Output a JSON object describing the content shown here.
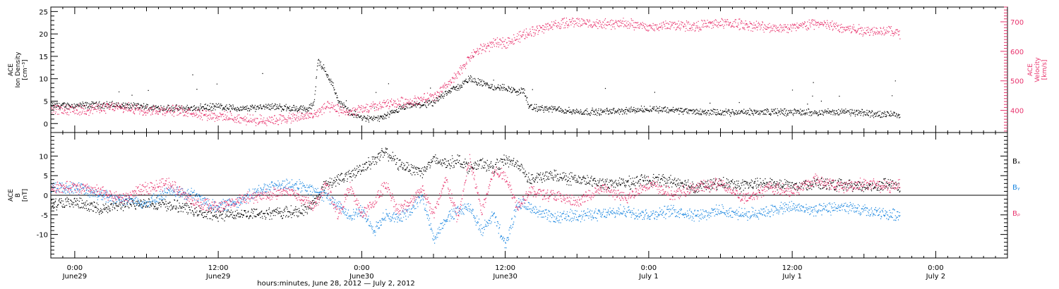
{
  "chart_data": [
    {
      "type": "scatter",
      "panel": "top",
      "left_axis": {
        "label_lines": [
          "ACE",
          "Ion Density",
          "[cm⁻³]"
        ],
        "ylim": [
          -2,
          26
        ],
        "ticks": [
          0,
          5,
          10,
          15,
          20,
          25
        ],
        "color": "#000000"
      },
      "right_axis": {
        "label_lines": [
          "ACE",
          "Velocity",
          "[km/s]"
        ],
        "ylim": [
          325,
          750
        ],
        "ticks": [
          400,
          500,
          600,
          700
        ],
        "color": "#e8336d"
      },
      "series": [
        {
          "axis": "left",
          "color": "#000000",
          "points": [
            [
              0,
              4
            ],
            [
              3,
              4.2
            ],
            [
              6,
              3.6
            ],
            [
              9,
              3.3
            ],
            [
              12,
              3.8
            ],
            [
              14,
              3.2
            ],
            [
              16,
              3.9
            ],
            [
              18,
              3.4
            ],
            [
              19.5,
              3.1
            ],
            [
              20,
              5
            ],
            [
              20.3,
              14
            ],
            [
              20.8,
              12
            ],
            [
              21.5,
              9
            ],
            [
              22,
              5
            ],
            [
              23,
              2.5
            ],
            [
              24,
              1.2
            ],
            [
              25,
              1
            ],
            [
              26,
              1.5
            ],
            [
              27,
              3
            ],
            [
              28,
              4
            ],
            [
              29,
              4.2
            ],
            [
              30,
              4.5
            ],
            [
              31,
              7
            ],
            [
              32,
              8
            ],
            [
              33,
              10
            ],
            [
              34,
              9
            ],
            [
              35,
              8
            ],
            [
              36,
              8
            ],
            [
              37,
              7
            ],
            [
              37.5,
              7.5
            ],
            [
              38,
              3.5
            ],
            [
              40,
              3.2
            ],
            [
              42,
              2.6
            ],
            [
              44,
              2.6
            ],
            [
              46,
              2.8
            ],
            [
              48,
              3.3
            ],
            [
              50,
              3
            ],
            [
              52,
              2.6
            ],
            [
              54,
              2.4
            ],
            [
              56,
              2.5
            ],
            [
              58,
              2.6
            ],
            [
              60,
              2.5
            ],
            [
              62,
              2.5
            ],
            [
              64,
              2.6
            ],
            [
              66,
              2.3
            ],
            [
              68,
              2
            ],
            [
              69,
              2.1
            ]
          ]
        },
        {
          "axis": "right",
          "color": "#e8336d",
          "points": [
            [
              0,
              400
            ],
            [
              3,
              410
            ],
            [
              6,
              402
            ],
            [
              9,
              398
            ],
            [
              12,
              380
            ],
            [
              15,
              365
            ],
            [
              18,
              372
            ],
            [
              20,
              385
            ],
            [
              21,
              412
            ],
            [
              23,
              392
            ],
            [
              24,
              402
            ],
            [
              26,
              420
            ],
            [
              28,
              430
            ],
            [
              30,
              445
            ],
            [
              31,
              480
            ],
            [
              32,
              520
            ],
            [
              33,
              580
            ],
            [
              34,
              610
            ],
            [
              35,
              625
            ],
            [
              36,
              630
            ],
            [
              37,
              645
            ],
            [
              38,
              665
            ],
            [
              40,
              690
            ],
            [
              42,
              700
            ],
            [
              44,
              690
            ],
            [
              46,
              695
            ],
            [
              48,
              680
            ],
            [
              50,
              690
            ],
            [
              52,
              685
            ],
            [
              54,
              695
            ],
            [
              56,
              690
            ],
            [
              58,
              680
            ],
            [
              60,
              680
            ],
            [
              62,
              695
            ],
            [
              64,
              680
            ],
            [
              66,
              670
            ],
            [
              68,
              670
            ],
            [
              69,
              660
            ]
          ]
        }
      ]
    },
    {
      "type": "scatter",
      "panel": "bottom",
      "left_axis": {
        "label_lines": [
          "ACE",
          "B",
          "[nT]"
        ],
        "ylim": [
          -16,
          16
        ],
        "ticks": [
          -10,
          -5,
          0,
          5,
          10
        ]
      },
      "legend": [
        "Bₓ",
        "Bᵧ",
        "Bᵨ"
      ],
      "series": [
        {
          "name": "Bₓ",
          "color": "#000000",
          "points": [
            [
              0,
              -2
            ],
            [
              2,
              -3.5
            ],
            [
              4,
              -2.5
            ],
            [
              6,
              -2
            ],
            [
              9,
              -3
            ],
            [
              11,
              -5
            ],
            [
              14,
              -4.8
            ],
            [
              17,
              -4.5
            ],
            [
              19,
              -4
            ],
            [
              20,
              -2
            ],
            [
              21,
              3
            ],
            [
              22,
              4
            ],
            [
              23,
              5
            ],
            [
              24,
              7
            ],
            [
              25,
              9
            ],
            [
              26,
              11
            ],
            [
              27,
              8
            ],
            [
              28,
              7
            ],
            [
              29,
              6
            ],
            [
              30,
              9
            ],
            [
              31,
              8
            ],
            [
              32,
              9
            ],
            [
              33,
              7
            ],
            [
              34,
              8
            ],
            [
              35,
              7
            ],
            [
              36,
              9
            ],
            [
              37,
              8
            ],
            [
              38,
              4
            ],
            [
              40,
              5
            ],
            [
              42,
              4
            ],
            [
              44,
              3
            ],
            [
              46,
              3
            ],
            [
              48,
              4
            ],
            [
              50,
              3.5
            ],
            [
              52,
              2
            ],
            [
              54,
              3
            ],
            [
              56,
              2.5
            ],
            [
              58,
              3
            ],
            [
              60,
              2.5
            ],
            [
              62,
              3
            ],
            [
              64,
              2.5
            ],
            [
              66,
              2
            ],
            [
              68,
              3
            ],
            [
              69,
              2
            ]
          ]
        },
        {
          "name": "Bᵧ",
          "color": "#1a86e0",
          "points": [
            [
              0,
              2
            ],
            [
              2,
              0
            ],
            [
              4,
              -1
            ],
            [
              6,
              -2
            ],
            [
              8,
              1
            ],
            [
              10,
              0
            ],
            [
              11,
              -2
            ],
            [
              12,
              -3
            ],
            [
              14,
              -1
            ],
            [
              16,
              2
            ],
            [
              18,
              3
            ],
            [
              20,
              1
            ],
            [
              21,
              0
            ],
            [
              22,
              -3
            ],
            [
              23,
              -5
            ],
            [
              24,
              -4
            ],
            [
              25,
              -9
            ],
            [
              26,
              -5
            ],
            [
              27,
              -6
            ],
            [
              28,
              -4
            ],
            [
              29,
              0
            ],
            [
              30,
              -11
            ],
            [
              31,
              -6
            ],
            [
              32,
              -4
            ],
            [
              33,
              -3
            ],
            [
              34,
              -9
            ],
            [
              35,
              -5
            ],
            [
              36,
              -13
            ],
            [
              37,
              -2
            ],
            [
              38,
              -3
            ],
            [
              40,
              -6
            ],
            [
              42,
              -5
            ],
            [
              44,
              -5
            ],
            [
              46,
              -4
            ],
            [
              48,
              -5
            ],
            [
              50,
              -4
            ],
            [
              52,
              -5
            ],
            [
              54,
              -4
            ],
            [
              56,
              -5
            ],
            [
              58,
              -4
            ],
            [
              60,
              -3
            ],
            [
              62,
              -4
            ],
            [
              64,
              -3
            ],
            [
              66,
              -4
            ],
            [
              68,
              -5
            ],
            [
              69,
              -5
            ]
          ]
        },
        {
          "name": "Bᵨ",
          "color": "#e8336d",
          "points": [
            [
              0,
              2
            ],
            [
              2,
              1
            ],
            [
              4,
              -1
            ],
            [
              6,
              2
            ],
            [
              8,
              3
            ],
            [
              10,
              -2
            ],
            [
              12,
              -3
            ],
            [
              14,
              -1
            ],
            [
              16,
              0
            ],
            [
              18,
              1
            ],
            [
              20,
              -3
            ],
            [
              21,
              3
            ],
            [
              22,
              -5
            ],
            [
              23,
              2
            ],
            [
              24,
              -5
            ],
            [
              25,
              -2
            ],
            [
              26,
              3
            ],
            [
              27,
              -4
            ],
            [
              28,
              -2
            ],
            [
              29,
              2
            ],
            [
              30,
              -5
            ],
            [
              31,
              4
            ],
            [
              32,
              -6
            ],
            [
              33,
              9
            ],
            [
              34,
              -4
            ],
            [
              35,
              6
            ],
            [
              36,
              5
            ],
            [
              37,
              -3
            ],
            [
              38,
              1
            ],
            [
              40,
              0
            ],
            [
              42,
              -2
            ],
            [
              44,
              2
            ],
            [
              46,
              -1
            ],
            [
              48,
              3
            ],
            [
              50,
              0
            ],
            [
              52,
              2
            ],
            [
              54,
              3
            ],
            [
              56,
              -1
            ],
            [
              58,
              2
            ],
            [
              60,
              1
            ],
            [
              62,
              4
            ],
            [
              64,
              2
            ],
            [
              66,
              3
            ],
            [
              68,
              2
            ],
            [
              69,
              3
            ]
          ]
        }
      ]
    }
  ],
  "x_axis": {
    "xlim": [
      -2,
      78
    ],
    "ticks": [
      {
        "hours": 0,
        "time": "0:00",
        "date": "June29"
      },
      {
        "hours": 12,
        "time": "12:00",
        "date": "June29"
      },
      {
        "hours": 24,
        "time": "0:00",
        "date": "June30"
      },
      {
        "hours": 36,
        "time": "12:00",
        "date": "June30"
      },
      {
        "hours": 48,
        "time": "0:00",
        "date": "July 1"
      },
      {
        "hours": 60,
        "time": "12:00",
        "date": "July 1"
      },
      {
        "hours": 72,
        "time": "0:00",
        "date": "July 2"
      }
    ],
    "title": "hours:minutes, June 28, 2012 — July 2, 2012"
  }
}
